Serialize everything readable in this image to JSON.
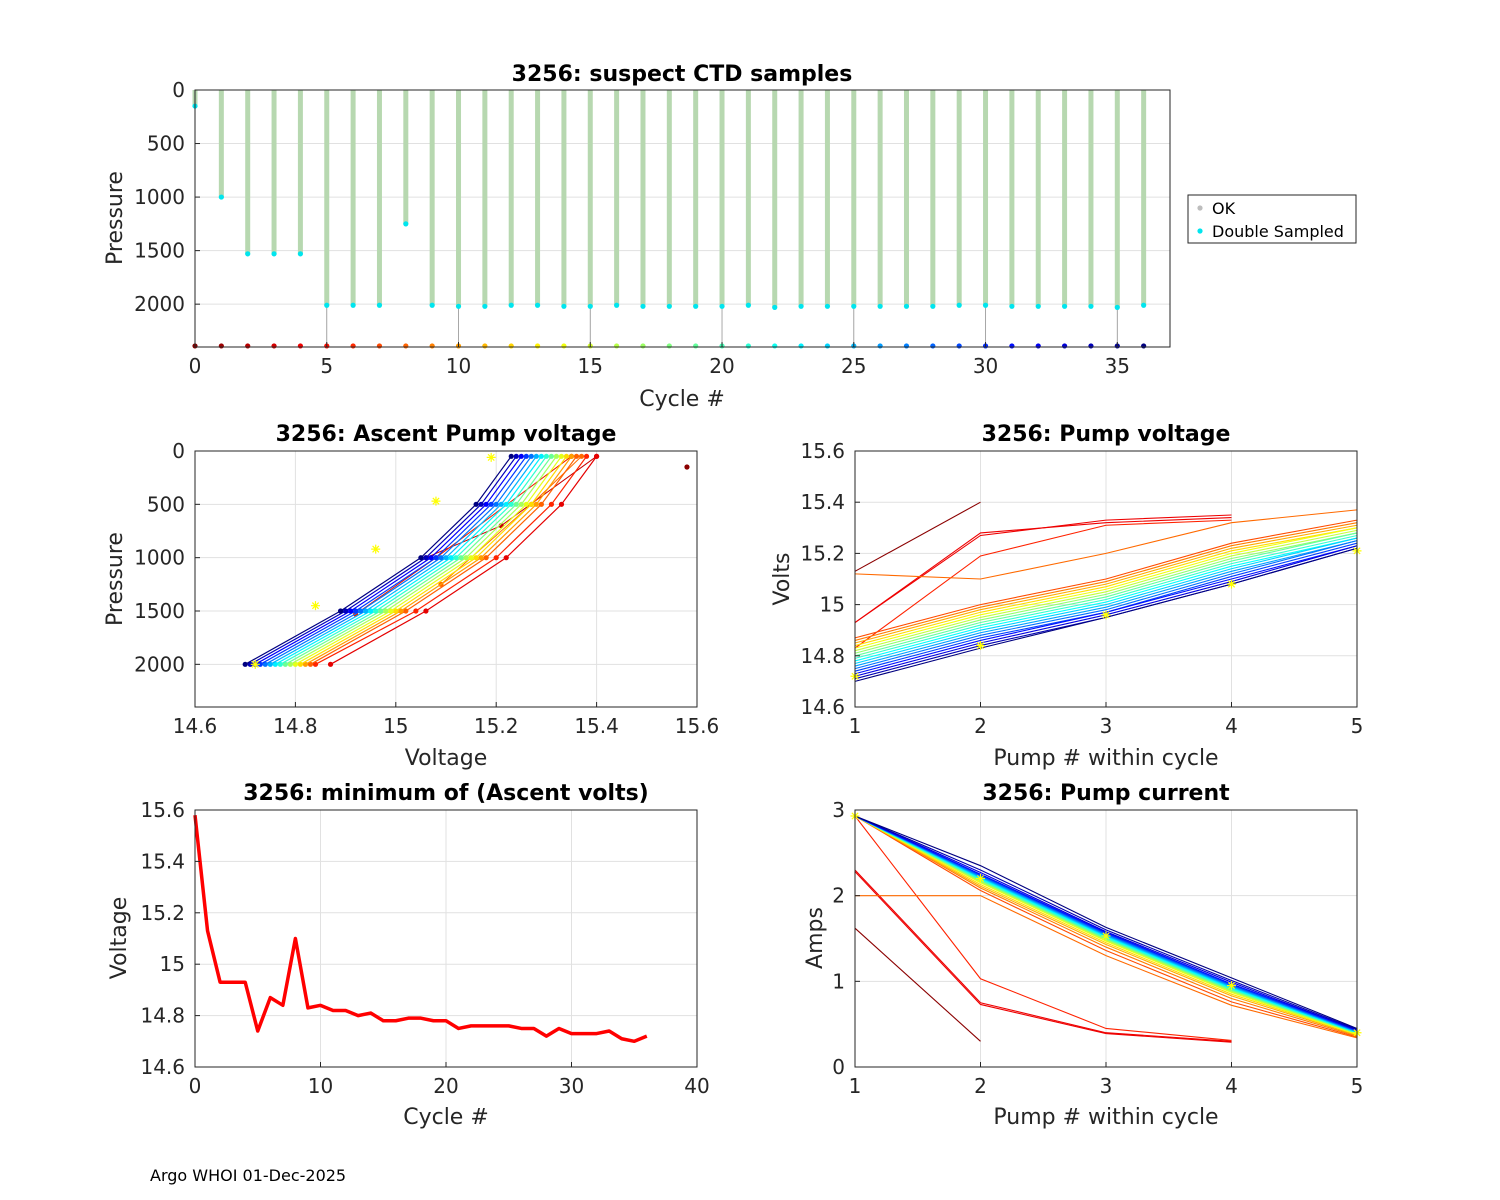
{
  "footer": "Argo WHOI 01-Dec-2025",
  "chart_data": [
    {
      "id": "ctd",
      "type": "scatter",
      "title": "3256: suspect CTD samples",
      "xlabel": "Cycle #",
      "ylabel": "Pressure",
      "xlim": [
        0,
        37
      ],
      "ylim": [
        0,
        2400
      ],
      "y_reversed": true,
      "xticks": [
        0,
        5,
        10,
        15,
        20,
        25,
        30,
        35
      ],
      "yticks": [
        0,
        500,
        1000,
        1500,
        2000
      ],
      "legend": {
        "position": "right",
        "entries": [
          "OK",
          "Double Sampled"
        ]
      },
      "cycles": [
        0,
        1,
        2,
        3,
        4,
        5,
        6,
        7,
        8,
        9,
        10,
        11,
        12,
        13,
        14,
        15,
        16,
        17,
        18,
        19,
        20,
        21,
        22,
        23,
        24,
        25,
        26,
        27,
        28,
        29,
        30,
        31,
        32,
        33,
        34,
        35,
        36
      ],
      "max_pressure": [
        150,
        1000,
        1530,
        1530,
        1530,
        2010,
        2010,
        2010,
        1250,
        2010,
        2020,
        2020,
        2010,
        2010,
        2020,
        2020,
        2010,
        2020,
        2020,
        2020,
        2020,
        2010,
        2030,
        2020,
        2020,
        2020,
        2020,
        2020,
        2020,
        2010,
        2010,
        2020,
        2020,
        2020,
        2020,
        2030,
        2010
      ],
      "bottom_marker_pressure": 2390
    },
    {
      "id": "ascent",
      "type": "line",
      "title": "3256: Ascent Pump voltage",
      "xlabel": "Voltage",
      "ylabel": "Pressure",
      "xlim": [
        14.6,
        15.6
      ],
      "ylim": [
        0,
        2400
      ],
      "y_reversed": true,
      "xticks": [
        14.6,
        14.8,
        15,
        15.2,
        15.4,
        15.6
      ],
      "xticklabels": [
        "14.6",
        "14.8",
        "15",
        "15.2",
        "15.4",
        "15.6"
      ],
      "yticks": [
        0,
        500,
        1000,
        1500,
        2000
      ],
      "profile_pressures": [
        2000,
        1500,
        1000,
        500,
        50
      ],
      "deep_profile_voltages": [
        [
          14.87,
          15.06,
          15.22,
          15.33,
          15.4
        ],
        [
          14.84,
          15.04,
          15.2,
          15.31,
          15.38
        ],
        [
          14.83,
          15.02,
          15.18,
          15.29,
          15.36
        ],
        [
          14.82,
          15.01,
          15.17,
          15.28,
          15.35
        ],
        [
          14.81,
          15.0,
          15.16,
          15.27,
          15.34
        ],
        [
          14.8,
          14.99,
          15.15,
          15.26,
          15.33
        ],
        [
          14.79,
          14.98,
          15.14,
          15.25,
          15.32
        ],
        [
          14.78,
          14.97,
          15.13,
          15.24,
          15.31
        ],
        [
          14.77,
          14.96,
          15.12,
          15.23,
          15.3
        ],
        [
          14.76,
          14.95,
          15.11,
          15.22,
          15.29
        ],
        [
          14.75,
          14.94,
          15.1,
          15.21,
          15.28
        ],
        [
          14.74,
          14.93,
          15.09,
          15.2,
          15.27
        ],
        [
          14.73,
          14.92,
          15.08,
          15.19,
          15.26
        ],
        [
          14.72,
          14.91,
          15.07,
          15.18,
          15.25
        ],
        [
          14.71,
          14.9,
          15.06,
          15.17,
          15.24
        ],
        [
          14.7,
          14.89,
          15.05,
          15.16,
          15.23
        ]
      ],
      "shallow_profiles": [
        {
          "pressures": [
            1000,
            700,
            50
          ],
          "voltages": [
            15.06,
            15.21,
            15.4
          ]
        },
        {
          "pressures": [
            1530,
            1000,
            50
          ],
          "voltages": [
            14.92,
            15.08,
            15.35
          ]
        },
        {
          "pressures": [
            1250,
            500,
            50
          ],
          "voltages": [
            15.09,
            15.27,
            15.37
          ]
        },
        {
          "pressures": [
            150
          ],
          "voltages": [
            15.58
          ]
        }
      ],
      "yellow_markers": [
        {
          "v": 14.72,
          "p": 2000
        },
        {
          "v": 14.84,
          "p": 1450
        },
        {
          "v": 14.96,
          "p": 920
        },
        {
          "v": 15.08,
          "p": 470
        },
        {
          "v": 15.19,
          "p": 60
        }
      ]
    },
    {
      "id": "pumpv",
      "type": "line",
      "title": "3256: Pump voltage",
      "xlabel": "Pump # within cycle",
      "ylabel": "Volts",
      "xlim": [
        1,
        5
      ],
      "ylim": [
        14.6,
        15.6
      ],
      "xticks": [
        1,
        2,
        3,
        4,
        5
      ],
      "yticks": [
        14.6,
        14.8,
        15,
        15.2,
        15.4,
        15.6
      ],
      "yticklabels": [
        "14.6",
        "14.8",
        "15",
        "15.2",
        "15.4",
        "15.6"
      ],
      "series": [
        {
          "x": [
            1,
            2
          ],
          "y": [
            15.13,
            15.4
          ]
        },
        {
          "x": [
            1,
            2,
            3,
            4
          ],
          "y": [
            14.93,
            15.27,
            15.33,
            15.35
          ]
        },
        {
          "x": [
            1,
            2,
            3,
            4
          ],
          "y": [
            14.93,
            15.28,
            15.32,
            15.34
          ]
        },
        {
          "x": [
            1,
            2,
            3,
            4
          ],
          "y": [
            14.83,
            15.19,
            15.31,
            15.33
          ]
        },
        {
          "x": [
            1,
            2,
            3,
            4,
            5
          ],
          "y": [
            15.12,
            15.1,
            15.2,
            15.32,
            15.37
          ]
        },
        {
          "x": [
            1,
            2,
            3,
            4,
            5
          ],
          "y": [
            14.87,
            15.0,
            15.1,
            15.24,
            15.33
          ]
        },
        {
          "x": [
            1,
            2,
            3,
            4,
            5
          ],
          "y": [
            14.86,
            14.99,
            15.09,
            15.23,
            15.32
          ]
        },
        {
          "x": [
            1,
            2,
            3,
            4,
            5
          ],
          "y": [
            14.85,
            14.98,
            15.08,
            15.22,
            15.31
          ]
        },
        {
          "x": [
            1,
            2,
            3,
            4,
            5
          ],
          "y": [
            14.84,
            14.97,
            15.07,
            15.21,
            15.3
          ]
        },
        {
          "x": [
            1,
            2,
            3,
            4,
            5
          ],
          "y": [
            14.83,
            14.96,
            15.06,
            15.2,
            15.3
          ]
        },
        {
          "x": [
            1,
            2,
            3,
            4,
            5
          ],
          "y": [
            14.82,
            14.95,
            15.05,
            15.19,
            15.29
          ]
        },
        {
          "x": [
            1,
            2,
            3,
            4,
            5
          ],
          "y": [
            14.81,
            14.94,
            15.04,
            15.18,
            15.28
          ]
        },
        {
          "x": [
            1,
            2,
            3,
            4,
            5
          ],
          "y": [
            14.8,
            14.93,
            15.03,
            15.17,
            15.28
          ]
        },
        {
          "x": [
            1,
            2,
            3,
            4,
            5
          ],
          "y": [
            14.79,
            14.92,
            15.02,
            15.16,
            15.27
          ]
        },
        {
          "x": [
            1,
            2,
            3,
            4,
            5
          ],
          "y": [
            14.78,
            14.91,
            15.01,
            15.15,
            15.26
          ]
        },
        {
          "x": [
            1,
            2,
            3,
            4,
            5
          ],
          "y": [
            14.77,
            14.9,
            15.0,
            15.14,
            15.26
          ]
        },
        {
          "x": [
            1,
            2,
            3,
            4,
            5
          ],
          "y": [
            14.76,
            14.89,
            14.99,
            15.13,
            15.25
          ]
        },
        {
          "x": [
            1,
            2,
            3,
            4,
            5
          ],
          "y": [
            14.75,
            14.88,
            14.98,
            15.12,
            15.25
          ]
        },
        {
          "x": [
            1,
            2,
            3,
            4,
            5
          ],
          "y": [
            14.74,
            14.87,
            14.97,
            15.11,
            15.24
          ]
        },
        {
          "x": [
            1,
            2,
            3,
            4,
            5
          ],
          "y": [
            14.73,
            14.86,
            14.97,
            15.1,
            15.23
          ]
        },
        {
          "x": [
            1,
            2,
            3,
            4,
            5
          ],
          "y": [
            14.72,
            14.85,
            14.96,
            15.09,
            15.23
          ]
        },
        {
          "x": [
            1,
            2,
            3,
            4,
            5
          ],
          "y": [
            14.71,
            14.84,
            14.95,
            15.08,
            15.22
          ]
        },
        {
          "x": [
            1,
            2,
            3,
            4,
            5
          ],
          "y": [
            14.7,
            14.83,
            14.95,
            15.08,
            15.22
          ]
        }
      ],
      "yellow_markers": [
        {
          "x": 1,
          "y": 14.72
        },
        {
          "x": 2,
          "y": 14.84
        },
        {
          "x": 3,
          "y": 14.96
        },
        {
          "x": 4,
          "y": 15.08
        },
        {
          "x": 5,
          "y": 15.21
        }
      ]
    },
    {
      "id": "minv",
      "type": "line",
      "title": "3256: minimum of (Ascent volts)",
      "xlabel": "Cycle #",
      "ylabel": "Voltage",
      "xlim": [
        0,
        40
      ],
      "ylim": [
        14.6,
        15.6
      ],
      "xticks": [
        0,
        10,
        20,
        30,
        40
      ],
      "yticks": [
        14.6,
        14.8,
        15,
        15.2,
        15.4,
        15.6
      ],
      "yticklabels": [
        "14.6",
        "14.8",
        "15",
        "15.2",
        "15.4",
        "15.6"
      ],
      "x": [
        0,
        1,
        2,
        3,
        4,
        5,
        6,
        7,
        8,
        9,
        10,
        11,
        12,
        13,
        14,
        15,
        16,
        17,
        18,
        19,
        20,
        21,
        22,
        23,
        24,
        25,
        26,
        27,
        28,
        29,
        30,
        31,
        32,
        33,
        34,
        35,
        36
      ],
      "y": [
        15.58,
        15.13,
        14.93,
        14.93,
        14.93,
        14.74,
        14.87,
        14.84,
        15.1,
        14.83,
        14.84,
        14.82,
        14.82,
        14.8,
        14.81,
        14.78,
        14.78,
        14.79,
        14.79,
        14.78,
        14.78,
        14.75,
        14.76,
        14.76,
        14.76,
        14.76,
        14.75,
        14.75,
        14.72,
        14.75,
        14.73,
        14.73,
        14.73,
        14.74,
        14.71,
        14.7,
        14.72
      ],
      "color": "#ff0000"
    },
    {
      "id": "pumpc",
      "type": "line",
      "title": "3256: Pump current",
      "xlabel": "Pump # within cycle",
      "ylabel": "Amps",
      "xlim": [
        1,
        5
      ],
      "ylim": [
        0,
        3
      ],
      "xticks": [
        1,
        2,
        3,
        4,
        5
      ],
      "yticks": [
        0,
        1,
        2,
        3
      ],
      "series": [
        {
          "x": [
            1,
            2
          ],
          "y": [
            1.62,
            0.3
          ]
        },
        {
          "x": [
            1,
            2,
            3,
            4
          ],
          "y": [
            2.3,
            0.75,
            0.4,
            0.3
          ]
        },
        {
          "x": [
            1,
            2,
            3,
            4
          ],
          "y": [
            2.28,
            0.73,
            0.39,
            0.29
          ]
        },
        {
          "x": [
            1,
            2,
            3,
            4
          ],
          "y": [
            2.93,
            1.03,
            0.45,
            0.31
          ]
        },
        {
          "x": [
            1,
            2,
            3,
            4,
            5
          ],
          "y": [
            2.0,
            2.0,
            1.3,
            0.72,
            0.34
          ]
        },
        {
          "x": [
            1,
            2,
            3,
            4,
            5
          ],
          "y": [
            2.93,
            2.06,
            1.36,
            0.76,
            0.35
          ]
        },
        {
          "x": [
            1,
            2,
            3,
            4,
            5
          ],
          "y": [
            2.93,
            2.09,
            1.4,
            0.8,
            0.36
          ]
        },
        {
          "x": [
            1,
            2,
            3,
            4,
            5
          ],
          "y": [
            2.93,
            2.11,
            1.43,
            0.83,
            0.37
          ]
        },
        {
          "x": [
            1,
            2,
            3,
            4,
            5
          ],
          "y": [
            2.93,
            2.13,
            1.45,
            0.85,
            0.38
          ]
        },
        {
          "x": [
            1,
            2,
            3,
            4,
            5
          ],
          "y": [
            2.93,
            2.15,
            1.47,
            0.87,
            0.38
          ]
        },
        {
          "x": [
            1,
            2,
            3,
            4,
            5
          ],
          "y": [
            2.93,
            2.16,
            1.48,
            0.88,
            0.39
          ]
        },
        {
          "x": [
            1,
            2,
            3,
            4,
            5
          ],
          "y": [
            2.93,
            2.17,
            1.49,
            0.89,
            0.39
          ]
        },
        {
          "x": [
            1,
            2,
            3,
            4,
            5
          ],
          "y": [
            2.93,
            2.18,
            1.5,
            0.9,
            0.4
          ]
        },
        {
          "x": [
            1,
            2,
            3,
            4,
            5
          ],
          "y": [
            2.93,
            2.19,
            1.51,
            0.91,
            0.4
          ]
        },
        {
          "x": [
            1,
            2,
            3,
            4,
            5
          ],
          "y": [
            2.93,
            2.2,
            1.52,
            0.92,
            0.4
          ]
        },
        {
          "x": [
            1,
            2,
            3,
            4,
            5
          ],
          "y": [
            2.93,
            2.21,
            1.53,
            0.93,
            0.41
          ]
        },
        {
          "x": [
            1,
            2,
            3,
            4,
            5
          ],
          "y": [
            2.93,
            2.22,
            1.54,
            0.94,
            0.41
          ]
        },
        {
          "x": [
            1,
            2,
            3,
            4,
            5
          ],
          "y": [
            2.93,
            2.23,
            1.55,
            0.95,
            0.42
          ]
        },
        {
          "x": [
            1,
            2,
            3,
            4,
            5
          ],
          "y": [
            2.93,
            2.24,
            1.56,
            0.96,
            0.42
          ]
        },
        {
          "x": [
            1,
            2,
            3,
            4,
            5
          ],
          "y": [
            2.93,
            2.25,
            1.57,
            0.97,
            0.43
          ]
        },
        {
          "x": [
            1,
            2,
            3,
            4,
            5
          ],
          "y": [
            2.93,
            2.27,
            1.58,
            0.99,
            0.43
          ]
        },
        {
          "x": [
            1,
            2,
            3,
            4,
            5
          ],
          "y": [
            2.93,
            2.3,
            1.6,
            1.01,
            0.44
          ]
        },
        {
          "x": [
            1,
            2,
            3,
            4,
            5
          ],
          "y": [
            2.93,
            2.35,
            1.63,
            1.04,
            0.45
          ]
        }
      ],
      "yellow_markers": [
        {
          "x": 1,
          "y": 2.93
        },
        {
          "x": 2,
          "y": 2.2
        },
        {
          "x": 3,
          "y": 1.53
        },
        {
          "x": 4,
          "y": 0.95
        },
        {
          "x": 5,
          "y": 0.4
        }
      ]
    }
  ],
  "colors": {
    "ok": "#b7d8b0",
    "double_sampled": "#00e5ee",
    "highlight": "#ffff00"
  }
}
